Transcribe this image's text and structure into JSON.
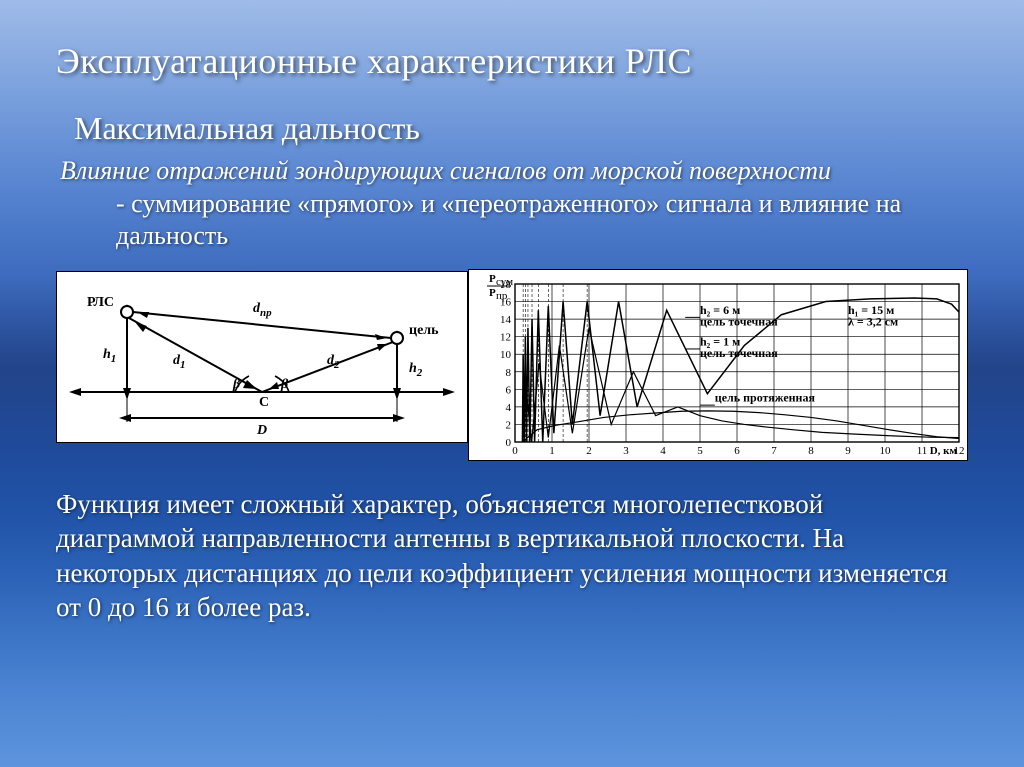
{
  "title": "Эксплуатационные характеристики  РЛС",
  "subtitle": "Максимальная дальность",
  "intro": {
    "lead_italic": "Влияние отражений зондирующих сигналов от морской поверхности",
    "rest": "  -  суммирование «прямого» и «переотраженного» сигнала и влияние на дальность"
  },
  "diagram": {
    "rls": "РЛС",
    "target": "цель",
    "d_pr": "d",
    "d_pr_sub": "пр",
    "d1": "d",
    "d1_sub": "1",
    "d2": "d",
    "d2_sub": "2",
    "h1": "h",
    "h1_sub": "1",
    "h2": "h",
    "h2_sub": "2",
    "beta_l": "β",
    "beta_r": "β",
    "C": "C",
    "D": "D",
    "stroke": "#000000",
    "bg": "#ffffff"
  },
  "chart": {
    "type": "line",
    "bg": "#ffffff",
    "stroke": "#000000",
    "grid_color": "#000000",
    "x_unit": "D, км",
    "y_label_top": "P",
    "y_label_top_sub": "сум",
    "y_label_bot": "P",
    "y_label_bot_sub": "пр",
    "xlim": [
      0,
      12
    ],
    "ylim": [
      0,
      18
    ],
    "xticks": [
      0,
      1,
      2,
      3,
      4,
      5,
      6,
      7,
      8,
      9,
      10,
      11,
      12
    ],
    "yticks": [
      0,
      2,
      4,
      6,
      8,
      10,
      12,
      14,
      16,
      18
    ],
    "legend": {
      "l1a": "h₂ = 6 м",
      "l1b": "цель точечная",
      "l2a": "h₂ = 1 м",
      "l2b": "цель точечная",
      "l3": "цель протяженная",
      "r1": "h₁ = 15 м",
      "r2": "λ = 3,2 см"
    },
    "series_point_h2_6": [
      [
        0.2,
        0
      ],
      [
        0.22,
        10
      ],
      [
        0.25,
        0
      ],
      [
        0.28,
        12
      ],
      [
        0.31,
        0
      ],
      [
        0.35,
        13
      ],
      [
        0.4,
        0
      ],
      [
        0.46,
        14
      ],
      [
        0.53,
        0
      ],
      [
        0.63,
        15
      ],
      [
        0.75,
        0
      ],
      [
        0.9,
        15.5
      ],
      [
        1.05,
        1
      ],
      [
        1.3,
        16
      ],
      [
        1.55,
        2
      ],
      [
        1.95,
        16
      ],
      [
        2.3,
        3
      ],
      [
        2.8,
        16
      ],
      [
        3.3,
        4
      ],
      [
        4.1,
        15
      ],
      [
        5.2,
        5.5
      ],
      [
        6.2,
        11
      ],
      [
        7.2,
        14.5
      ],
      [
        8.4,
        16
      ],
      [
        9.6,
        16.3
      ],
      [
        10.8,
        16.4
      ],
      [
        11.4,
        16.3
      ],
      [
        11.8,
        15.7
      ],
      [
        12.0,
        14.8
      ]
    ],
    "series_point_h2_1": [
      [
        0.2,
        0
      ],
      [
        0.3,
        6
      ],
      [
        0.45,
        0
      ],
      [
        0.65,
        9
      ],
      [
        0.9,
        0.5
      ],
      [
        1.2,
        11
      ],
      [
        1.55,
        1
      ],
      [
        2.0,
        13
      ],
      [
        2.6,
        2
      ],
      [
        3.2,
        8
      ],
      [
        3.8,
        3
      ],
      [
        4.4,
        4
      ],
      [
        5.0,
        3
      ],
      [
        5.6,
        2.4
      ],
      [
        6.2,
        2.0
      ],
      [
        6.8,
        1.7
      ],
      [
        7.5,
        1.4
      ],
      [
        8.3,
        1.1
      ],
      [
        9.2,
        0.9
      ],
      [
        10.2,
        0.7
      ],
      [
        11.2,
        0.55
      ],
      [
        12.0,
        0.5
      ]
    ],
    "series_extended": [
      [
        0.2,
        0
      ],
      [
        0.6,
        1.4
      ],
      [
        1.1,
        1.9
      ],
      [
        1.7,
        2.3
      ],
      [
        2.4,
        2.8
      ],
      [
        3.1,
        3.1
      ],
      [
        3.8,
        3.3
      ],
      [
        4.5,
        3.5
      ],
      [
        5.2,
        3.55
      ],
      [
        5.9,
        3.5
      ],
      [
        6.6,
        3.35
      ],
      [
        7.3,
        3.1
      ],
      [
        8.0,
        2.8
      ],
      [
        8.7,
        2.4
      ],
      [
        9.4,
        1.9
      ],
      [
        10.1,
        1.4
      ],
      [
        10.8,
        0.95
      ],
      [
        11.4,
        0.6
      ],
      [
        12.0,
        0.4
      ]
    ],
    "vlines_dense": [
      0.22,
      0.28,
      0.35,
      0.46,
      0.63,
      0.9,
      1.3,
      1.95
    ]
  },
  "bottom": "Функция имеет сложный характер, объясняется многолепестковой диаграммой направленности антенны в вертикальной плоскости. На некоторых дистанциях до цели коэффициент усиления мощности изменяется от 0 до 16 и более раз."
}
